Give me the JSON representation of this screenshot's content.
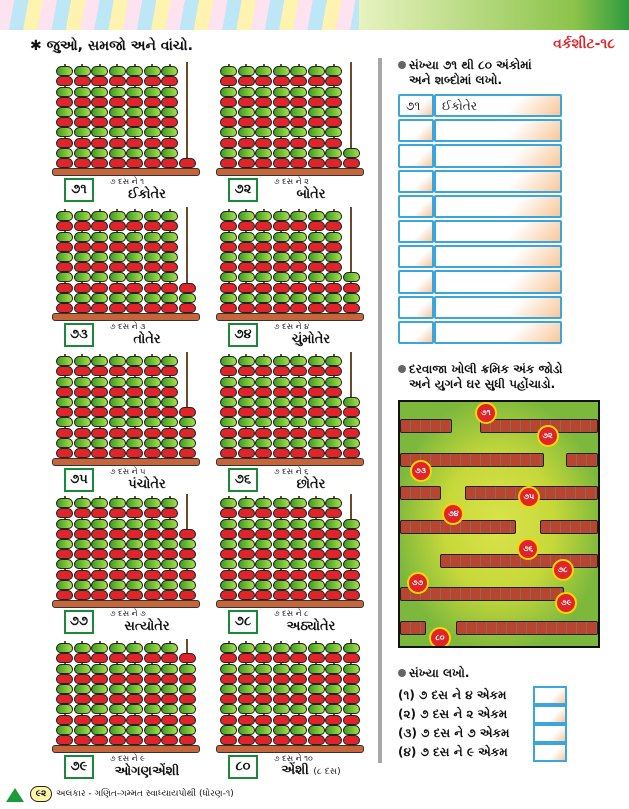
{
  "header": {
    "instruction": "✱ જુઓ, સમજો અને વાંચો.",
    "worksheet": "વર્કશીટ-૧૮"
  },
  "abacus": [
    {
      "number": "૭૧",
      "hint": "૭ દસ ને ૧",
      "word": "ઈકોતેર",
      "ones": 1
    },
    {
      "number": "૭૨",
      "hint": "૭ દસ ને ૨",
      "word": "બોતેર",
      "ones": 2
    },
    {
      "number": "૭૩",
      "hint": "૭ દસ ને ૩",
      "word": "તોતેર",
      "ones": 3
    },
    {
      "number": "૭૪",
      "hint": "૭ દસ ને ૪",
      "word": "ચુંમોતેર",
      "ones": 4
    },
    {
      "number": "૭૫",
      "hint": "૭ દસ ને ૫",
      "word": "પંચોતેર",
      "ones": 5
    },
    {
      "number": "૭૬",
      "hint": "૭ દસ ને ૬",
      "word": "છોતેર",
      "ones": 6
    },
    {
      "number": "૭૭",
      "hint": "૭ દસ ને ૭",
      "word": "સત્યોતેર",
      "ones": 7
    },
    {
      "number": "૭૮",
      "hint": "૭ દસ ને ૮",
      "word": "અઠ્યોતેર",
      "ones": 8
    },
    {
      "number": "૭૯",
      "hint": "૭ દસ ને ૯",
      "word": "ઓગણએંશી",
      "ones": 9
    },
    {
      "number": "૮૦",
      "hint": "૭ દસ ને ૧૦",
      "word": "એંશી",
      "extra": "(૮ દસ)",
      "ones": 10
    }
  ],
  "bead_colors": {
    "green": "#5cb82f",
    "red": "#e0252a"
  },
  "section1": {
    "line1": "સંખ્યા ૭૧ થી ૮૦ અંકોમાં",
    "line2": "અને શબ્દોમાં લખો.",
    "rows": [
      [
        "૭૧",
        "ઈકોતેર"
      ],
      [
        "",
        ""
      ],
      [
        "",
        ""
      ],
      [
        "",
        ""
      ],
      [
        "",
        ""
      ],
      [
        "",
        ""
      ],
      [
        "",
        ""
      ],
      [
        "",
        ""
      ],
      [
        "",
        ""
      ],
      [
        "",
        ""
      ]
    ]
  },
  "section2": {
    "line1": "દરવાજા ખોલી ક્રમિક અંક જોડો",
    "line2": "અને યુગને ઘર સુધી પહોંચાડો.",
    "circles": [
      "૭૧",
      "૭૨",
      "૭૩",
      "૭૫",
      "૭૪",
      "૭૬",
      "૭૮",
      "૭૭",
      "૭૯",
      "૮૦"
    ]
  },
  "section3": {
    "title": "સંખ્યા લખો.",
    "items": [
      "(૧) ૭ દસ ને ૪ એકમ",
      "(૨) ૭ દસ ને ૨ એકમ",
      "(૩) ૭ દસ ને ૭ એકમ",
      "(૪) ૭ દસ ને ૯ એકમ"
    ]
  },
  "footer": {
    "page": "૯૨",
    "text": "અલંકાર - ગણિત-ગમ્મત સ્વાધ્યાયપોથી (ધોરણ-૧)"
  }
}
